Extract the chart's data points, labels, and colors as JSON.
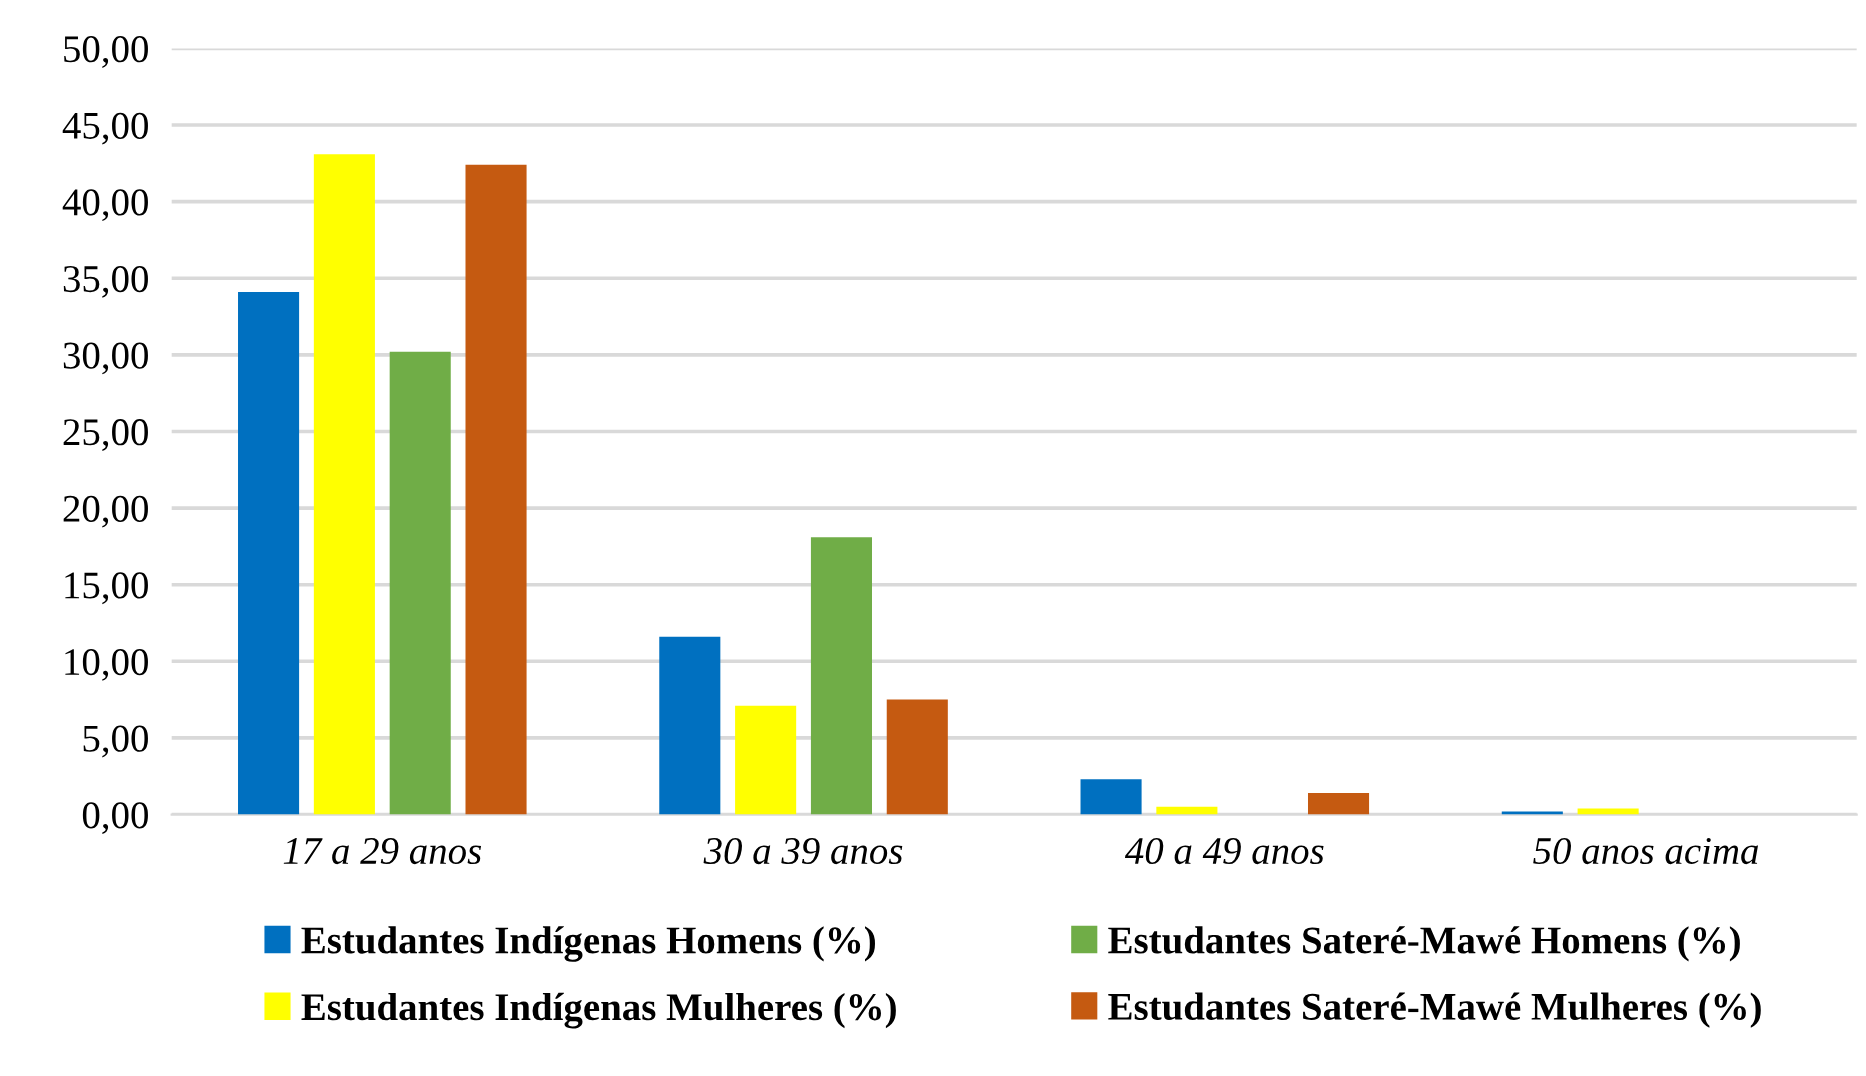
{
  "chart_data": {
    "type": "bar",
    "categories": [
      "17 a 29 anos",
      "30 a 39 anos",
      "40 a 49 anos",
      "50 anos acima"
    ],
    "series": [
      {
        "name": "Estudantes Indígenas Homens (%)",
        "color": "#0070c0",
        "values": [
          34.1,
          11.6,
          2.3,
          0.2
        ]
      },
      {
        "name": "Estudantes Indígenas Mulheres (%)",
        "color": "#ffff00",
        "values": [
          43.1,
          7.1,
          0.5,
          0.4
        ]
      },
      {
        "name": "Estudantes Sateré-Mawé Homens (%)",
        "color": "#70ad47",
        "values": [
          30.2,
          18.1,
          0,
          0
        ]
      },
      {
        "name": "Estudantes Sateré-Mawé Mulheres (%)",
        "color": "#c55a11",
        "values": [
          42.4,
          7.5,
          1.4,
          0
        ]
      }
    ],
    "ylim": [
      0,
      50
    ],
    "yticks": [
      {
        "value": 0,
        "label": "0,00"
      },
      {
        "value": 5,
        "label": "5,00"
      },
      {
        "value": 10,
        "label": "10,00"
      },
      {
        "value": 15,
        "label": "15,00"
      },
      {
        "value": 20,
        "label": "20,00"
      },
      {
        "value": 25,
        "label": "25,00"
      },
      {
        "value": 30,
        "label": "30,00"
      },
      {
        "value": 35,
        "label": "35,00"
      },
      {
        "value": 40,
        "label": "40,00"
      },
      {
        "value": 45,
        "label": "45,00"
      },
      {
        "value": 50,
        "label": "50,00"
      }
    ],
    "grid": "y",
    "legend": "bottom"
  }
}
